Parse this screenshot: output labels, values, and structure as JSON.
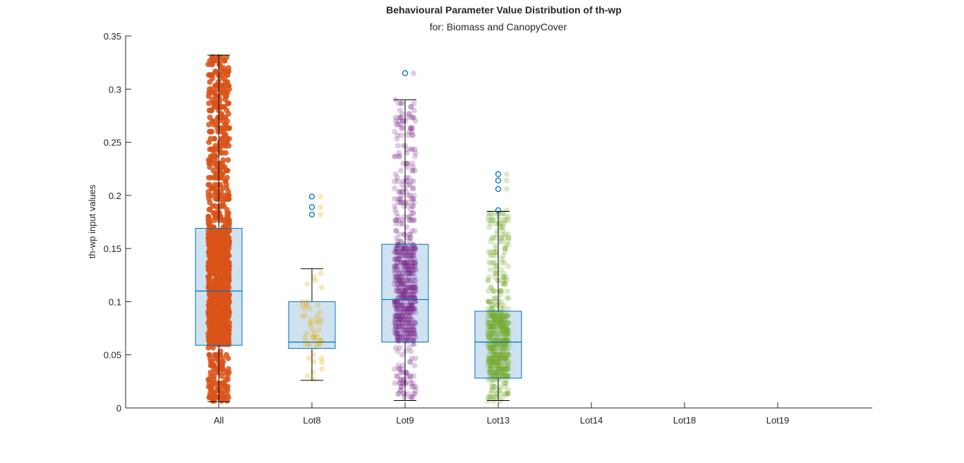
{
  "chart_data": {
    "type": "box",
    "title": "Behavioural Parameter Value Distribution of th-wp",
    "subtitle": "for: Biomass and CanopyCover",
    "xlabel": "",
    "ylabel": "th-wp input values",
    "ylim": [
      0,
      0.35
    ],
    "yticks": [
      0,
      0.05,
      0.1,
      0.15,
      0.2,
      0.25,
      0.3,
      0.35
    ],
    "ytick_labels": [
      "0",
      "0.05",
      "0.1",
      "0.15",
      "0.2",
      "0.25",
      "0.3",
      "0.35"
    ],
    "categories": [
      "All",
      "Lot8",
      "Lot9",
      "Lot13",
      "Lot14",
      "Lot18",
      "Lot19"
    ],
    "grid": false,
    "colors": {
      "box_fill": "#cfe2f0",
      "box_edge": "#0072bd",
      "outlier": "#0072bd",
      "axis": "#262626"
    },
    "series": [
      {
        "category": "All",
        "q1": 0.059,
        "median": 0.11,
        "q3": 0.169,
        "whisker_low": 0.006,
        "whisker_high": 0.332,
        "outliers": [],
        "point_color": "#d95319",
        "point_opacity": 0.85,
        "point_count": 1200,
        "point_range": [
          0.006,
          0.332
        ]
      },
      {
        "category": "Lot8",
        "q1": 0.056,
        "median": 0.062,
        "q3": 0.1,
        "whisker_low": 0.026,
        "whisker_high": 0.131,
        "outliers": [
          0.182,
          0.189,
          0.199
        ],
        "point_color": "#edb120",
        "point_opacity": 0.3,
        "point_count": 55,
        "point_range": [
          0.026,
          0.199
        ]
      },
      {
        "category": "Lot9",
        "q1": 0.062,
        "median": 0.102,
        "q3": 0.154,
        "whisker_low": 0.007,
        "whisker_high": 0.29,
        "outliers": [
          0.315
        ],
        "point_color": "#7e2f8e",
        "point_opacity": 0.25,
        "point_count": 700,
        "point_range": [
          0.007,
          0.315
        ]
      },
      {
        "category": "Lot13",
        "q1": 0.028,
        "median": 0.062,
        "q3": 0.091,
        "whisker_low": 0.007,
        "whisker_high": 0.185,
        "outliers": [
          0.186,
          0.206,
          0.214,
          0.22
        ],
        "point_color": "#77ac30",
        "point_opacity": 0.25,
        "point_count": 600,
        "point_range": [
          0.007,
          0.22
        ]
      },
      {
        "category": "Lot14",
        "empty": true
      },
      {
        "category": "Lot18",
        "empty": true
      },
      {
        "category": "Lot19",
        "empty": true
      }
    ]
  }
}
